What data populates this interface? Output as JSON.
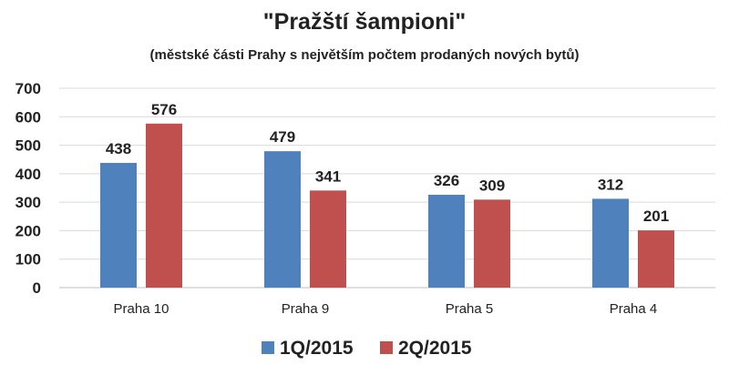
{
  "chart_data": {
    "type": "bar",
    "title": "\"Pražští šampioni\"",
    "subtitle": "(městské části Prahy s největším počtem prodaných nových bytů)",
    "categories": [
      "Praha 10",
      "Praha 9",
      "Praha 5",
      "Praha 4"
    ],
    "series": [
      {
        "name": "1Q/2015",
        "values": [
          438,
          479,
          326,
          312
        ],
        "color": "#4f81bd"
      },
      {
        "name": "2Q/2015",
        "values": [
          576,
          341,
          309,
          201
        ],
        "color": "#c0504d"
      }
    ],
    "ylim": [
      0,
      700
    ],
    "yticks": [
      "0",
      "100",
      "200",
      "300",
      "400",
      "500",
      "600",
      "700"
    ],
    "grid": true,
    "legend_position": "bottom"
  }
}
